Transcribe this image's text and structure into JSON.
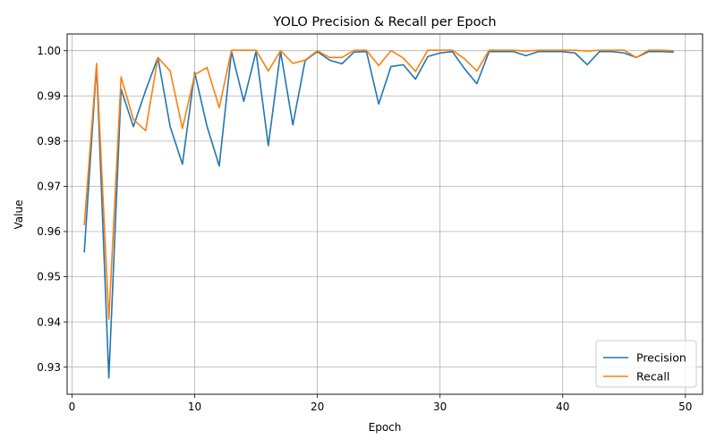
{
  "chart_data": {
    "type": "line",
    "title": "YOLO Precision & Recall per Epoch",
    "xlabel": "Epoch",
    "ylabel": "Value",
    "xlim": [
      -0.4,
      51.4
    ],
    "ylim": [
      0.924,
      1.0037
    ],
    "xticks": [
      0,
      10,
      20,
      30,
      40,
      50
    ],
    "xtick_labels": [
      "0",
      "10",
      "20",
      "30",
      "40",
      "50"
    ],
    "yticks": [
      0.93,
      0.94,
      0.95,
      0.96,
      0.97,
      0.98,
      0.99,
      1.0
    ],
    "ytick_labels": [
      "0.93",
      "0.94",
      "0.95",
      "0.96",
      "0.97",
      "0.98",
      "0.99",
      "1.00"
    ],
    "grid": true,
    "legend_position": "lower-right",
    "x": [
      1,
      2,
      3,
      4,
      5,
      6,
      7,
      8,
      9,
      10,
      11,
      12,
      13,
      14,
      15,
      16,
      17,
      18,
      19,
      20,
      21,
      22,
      23,
      24,
      25,
      26,
      27,
      28,
      29,
      30,
      31,
      32,
      33,
      34,
      35,
      36,
      37,
      38,
      39,
      40,
      41,
      42,
      43,
      44,
      45,
      46,
      47,
      48,
      49
    ],
    "series": [
      {
        "name": "Precision",
        "color": "#1f77b4",
        "values": [
          0.9555,
          0.9968,
          0.9276,
          0.9915,
          0.9832,
          0.9912,
          0.9985,
          0.9832,
          0.9749,
          0.9952,
          0.9833,
          0.9745,
          0.9998,
          0.9888,
          0.9998,
          0.979,
          0.9998,
          0.9836,
          0.9978,
          0.9998,
          0.9979,
          0.9971,
          0.9997,
          0.9998,
          0.9882,
          0.9965,
          0.9969,
          0.9937,
          0.9987,
          0.9995,
          0.9998,
          0.996,
          0.9927,
          0.9998,
          0.9998,
          0.9998,
          0.9989,
          0.9998,
          0.9998,
          0.9998,
          0.9995,
          0.9969,
          0.9998,
          0.9998,
          0.9995,
          0.9985,
          0.9998,
          0.9998,
          0.9997
        ]
      },
      {
        "name": "Recall",
        "color": "#ff7f0e",
        "values": [
          0.9615,
          0.9972,
          0.9406,
          0.9942,
          0.9848,
          0.9823,
          0.9985,
          0.9955,
          0.9828,
          0.9947,
          0.9963,
          0.9874,
          1.0001,
          1.0001,
          1.0001,
          0.9955,
          1.0,
          0.9972,
          0.9979,
          1.0,
          0.9985,
          0.9985,
          1.0001,
          1.0001,
          0.9967,
          1.0,
          0.9984,
          0.9954,
          1.0001,
          1.0001,
          1.0001,
          0.9982,
          0.9955,
          1.0001,
          1.0001,
          1.0001,
          0.9999,
          1.0001,
          1.0001,
          1.0001,
          1.0001,
          0.9999,
          1.0001,
          1.0001,
          1.0001,
          0.9985,
          1.0001,
          1.0001,
          1.0
        ]
      }
    ]
  }
}
